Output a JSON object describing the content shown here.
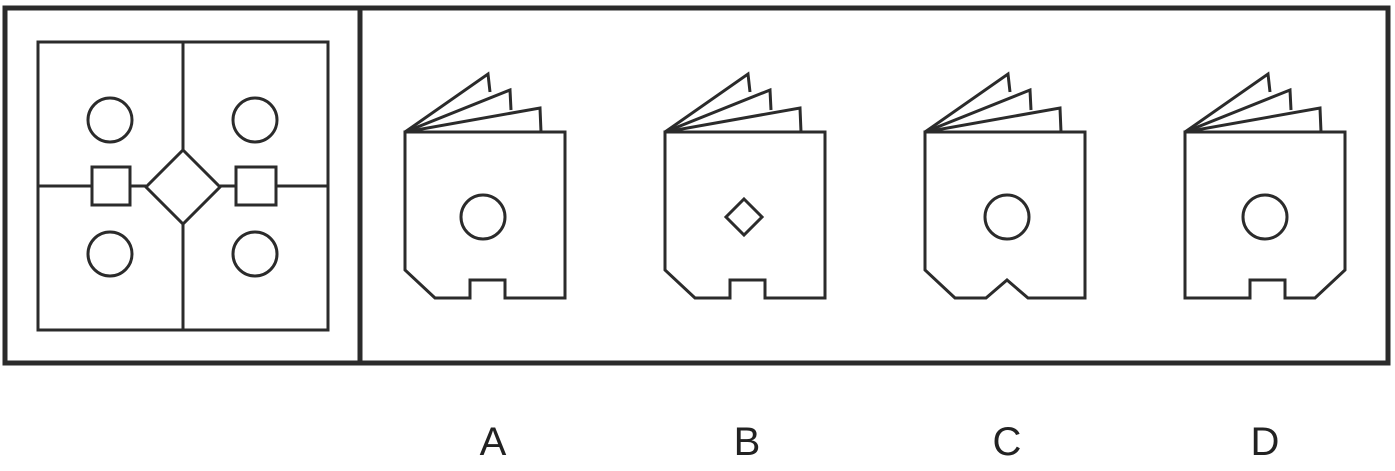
{
  "puzzle": {
    "options": [
      {
        "label": "A",
        "front_symbol": "circle",
        "bottom_notch": "rectangular"
      },
      {
        "label": "B",
        "front_symbol": "diamond",
        "bottom_notch": "rectangular"
      },
      {
        "label": "C",
        "front_symbol": "circle",
        "bottom_notch": "pointed"
      },
      {
        "label": "D",
        "front_symbol": "circle",
        "bottom_notch": "rectangular"
      }
    ]
  },
  "colors": {
    "stroke": "#2b2b2b",
    "background": "#ffffff",
    "label": "#222222"
  }
}
